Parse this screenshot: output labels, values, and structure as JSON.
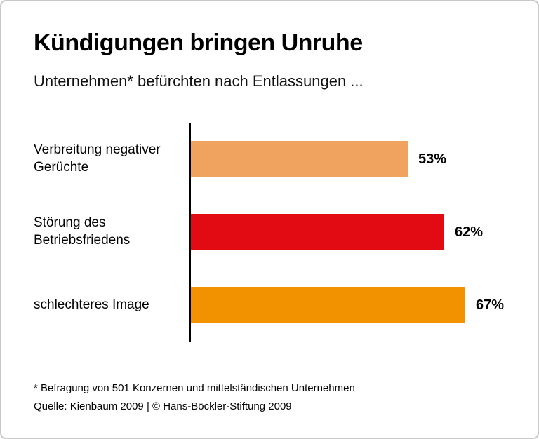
{
  "header": {
    "title": "Kündigungen bringen Unruhe",
    "subtitle": "Unternehmen* befürchten nach Entlassungen ..."
  },
  "chart_data": {
    "type": "bar",
    "orientation": "horizontal",
    "title": "Kündigungen bringen Unruhe",
    "subtitle": "Unternehmen* befürchten nach Entlassungen ...",
    "categories": [
      "Verbreitung negativer Gerüchte",
      "Störung des Betriebsfriedens",
      "schlechteres Image"
    ],
    "values": [
      53,
      62,
      67
    ],
    "value_labels": [
      "53%",
      "62%",
      "67%"
    ],
    "bar_colors": [
      "#f0a35e",
      "#e30b13",
      "#f39200"
    ],
    "xlim": [
      0,
      70
    ],
    "xlabel": "",
    "ylabel": "",
    "grid": false,
    "legend": "none",
    "axis_color": "#000000"
  },
  "footer": {
    "note": "* Befragung von 501 Konzernen und mittelständischen Unternehmen",
    "source": "Quelle: Kienbaum 2009 | © Hans-Böckler-Stiftung 2009"
  }
}
